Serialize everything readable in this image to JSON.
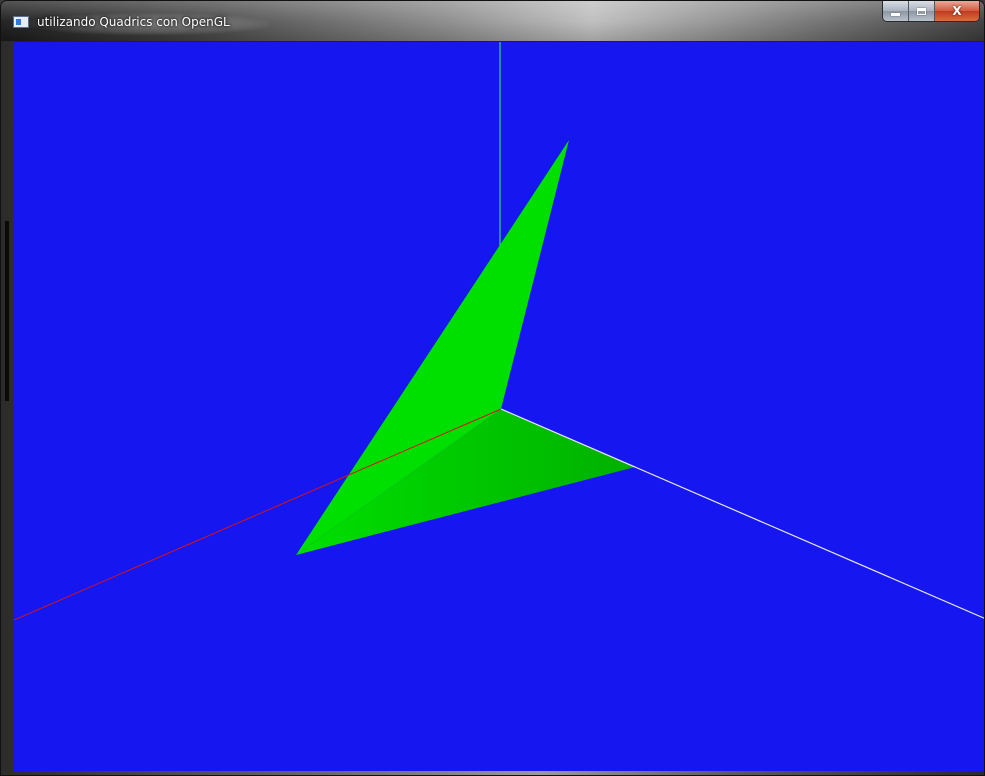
{
  "window": {
    "title": "utilizando Quadrics con OpenGL",
    "icon": "opengl-app-icon"
  },
  "caption_buttons": {
    "minimize_icon": "minimize-icon",
    "maximize_icon": "maximize-icon",
    "close_icon": "close-icon",
    "close_glyph": "X"
  },
  "scene": {
    "background_color": "#1616f0",
    "axes": {
      "x_axis_color": "#e8e8ff",
      "y_axis_color": "#33ff66",
      "z_axis_color": "#dd1111"
    },
    "shape_color": "#00e000",
    "shape_shade_color": "#00b800"
  }
}
